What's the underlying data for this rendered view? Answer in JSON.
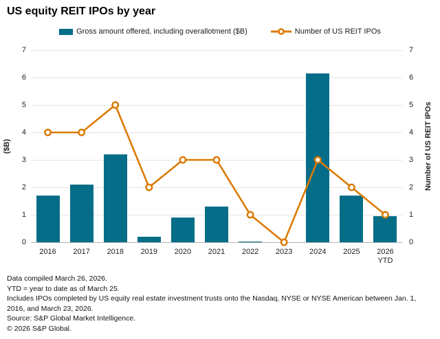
{
  "title": "US equity REIT IPOs by year",
  "chart_data": {
    "type": "combo-bar-line",
    "categories": [
      "2016",
      "2017",
      "2018",
      "2019",
      "2020",
      "2021",
      "2022",
      "2023",
      "2024",
      "2025",
      "2026 YTD"
    ],
    "series": [
      {
        "name": "Gross amount offered, including overallotment ($B)",
        "type": "bar",
        "axis": "left",
        "color": "#056D87",
        "values": [
          1.7,
          2.1,
          3.2,
          0.2,
          0.9,
          1.3,
          0.03,
          0,
          6.15,
          1.7,
          0.95
        ]
      },
      {
        "name": "Number of US REIT IPOs",
        "type": "line",
        "axis": "right",
        "color": "#DC7A05",
        "values": [
          4,
          4,
          5,
          2,
          3,
          3,
          1,
          0,
          3,
          2,
          1
        ]
      }
    ],
    "left_axis": {
      "label": "($B)",
      "min": 0,
      "max": 7,
      "step": 1
    },
    "right_axis": {
      "label": "Number of US REIT IPOs",
      "min": 0,
      "max": 7,
      "step": 1
    },
    "grid": true,
    "legend_position": "top"
  },
  "footer": {
    "lines": [
      "Data compiled March 26, 2026.",
      "YTD = year to date as of March 25.",
      "Includes IPOs completed by US equity real estate investment trusts onto the Nasdaq, NYSE or NYSE American between Jan. 1, 2016, and March 23, 2026.",
      "Source: S&P Global Market Intelligence.",
      "© 2026 S&P Global."
    ]
  }
}
